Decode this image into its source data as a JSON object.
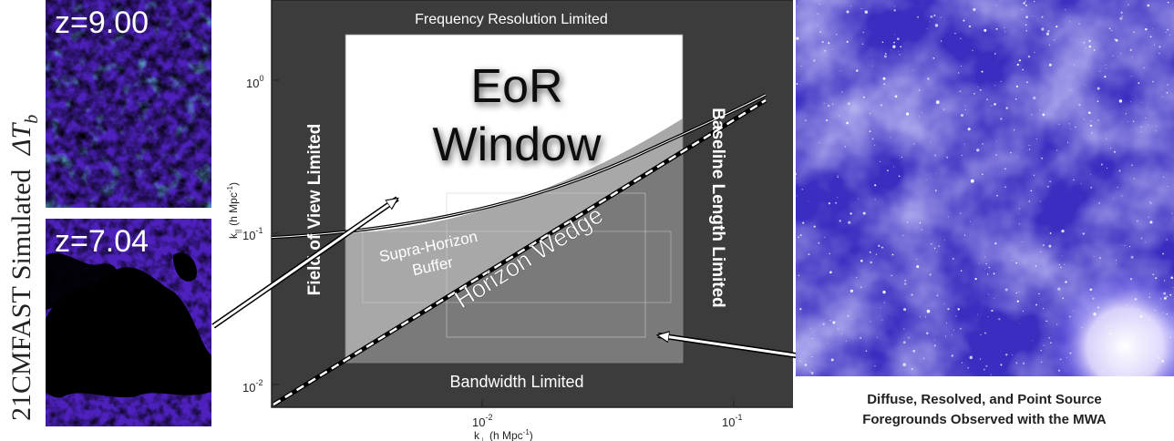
{
  "side_label": {
    "text": "21CMFAST Simulated",
    "math": "ΔT",
    "math_sub": "b"
  },
  "panels": [
    {
      "z_label": "z=9.00"
    },
    {
      "z_label": "z=7.04"
    }
  ],
  "diagram": {
    "top_label": "Frequency Resolution Limited",
    "bottom_label": "Bandwidth Limited",
    "left_label": "Field of View Limited",
    "right_label": "Baseline Length Limited",
    "eor_line1": "EoR",
    "eor_line2": "Window",
    "buffer_line1": "Supra-Horizon",
    "buffer_line2": "Buffer",
    "wedge_label": "Horizon Wedge",
    "y_ticks": [
      {
        "base": "10",
        "exp": "0"
      },
      {
        "base": "10",
        "exp": "-1"
      },
      {
        "base": "10",
        "exp": "-2"
      }
    ],
    "x_ticks": [
      {
        "base": "10",
        "exp": "-2"
      },
      {
        "base": "10",
        "exp": "-1"
      }
    ],
    "ylabel": {
      "k": "k",
      "sub": "||",
      "unit": "(h Mpc",
      "exp": "-1",
      "close": ")"
    },
    "xlabel": {
      "k": "k",
      "sub": "⊥",
      "unit": "(h Mpc",
      "exp": "-1",
      "close": ")"
    },
    "colors": {
      "frame": "#3c3c3c",
      "window": "#ffffff",
      "wedge": "#7a7a7a",
      "buffer": "#a6a6a6"
    }
  },
  "caption": {
    "line1": "Diffuse, Resolved, and Point Source",
    "line2": "Foregrounds Observed with the MWA"
  }
}
